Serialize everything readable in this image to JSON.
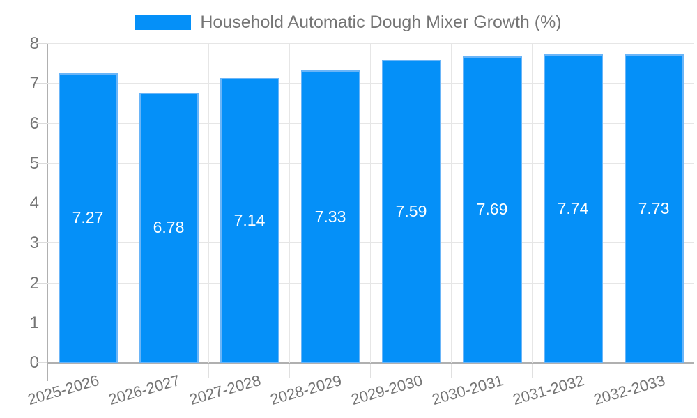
{
  "chart_data": {
    "type": "bar",
    "title": "",
    "legend": "Household Automatic Dough Mixer Growth (%)",
    "legend_position": "top",
    "categories": [
      "2025-2026",
      "2026-2027",
      "2027-2028",
      "2028-2029",
      "2029-2030",
      "2030-2031",
      "2031-2032",
      "2032-2033"
    ],
    "values": [
      7.27,
      6.78,
      7.14,
      7.33,
      7.59,
      7.69,
      7.74,
      7.73
    ],
    "bar_labels": [
      "7.27",
      "6.78",
      "7.14",
      "7.33",
      "7.59",
      "7.69",
      "7.74",
      "7.73"
    ],
    "xlabel": "",
    "ylabel": "",
    "ylim": [
      0,
      8
    ],
    "yticks": [
      0,
      1,
      2,
      3,
      4,
      5,
      6,
      7,
      8
    ],
    "grid": true,
    "colors": {
      "bar_fill": "#0590f8",
      "bar_border": "#6ab5f8",
      "bar_label_text": "#ffffff",
      "axis_text": "#757575",
      "gridline": "#e6e6e6",
      "axis_line": "#b0b0b0"
    }
  }
}
